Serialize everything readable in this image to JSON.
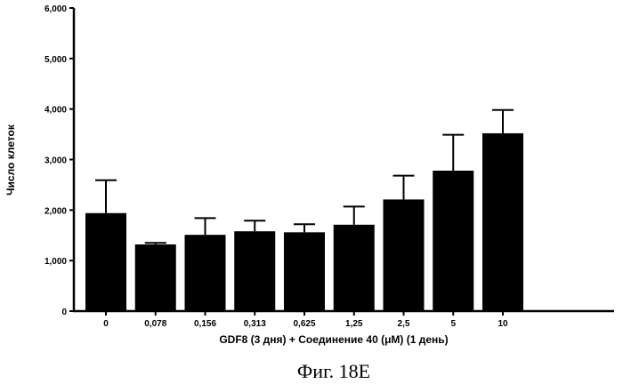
{
  "chart_data": {
    "type": "bar",
    "xlabel": "GDF8 (3 дня)  + Соединение 40 (μM) (1 день)",
    "ylabel": "Число клеток",
    "ylim": [
      0,
      6000
    ],
    "yticks": [
      "0",
      "1,000",
      "2,000",
      "3,000",
      "4,000",
      "5,000",
      "6,000"
    ],
    "categories": [
      "0",
      "0,078",
      "0,156",
      "0,313",
      "0,625",
      "1,25",
      "2,5",
      "5",
      "10"
    ],
    "values": [
      1940,
      1320,
      1510,
      1580,
      1560,
      1710,
      2210,
      2780,
      3520
    ],
    "error_upper": [
      2590,
      1350,
      1840,
      1790,
      1720,
      2070,
      2680,
      3490,
      3980
    ],
    "grid": false,
    "bar_color": "#000000"
  },
  "caption": "Фиг. 18Е"
}
